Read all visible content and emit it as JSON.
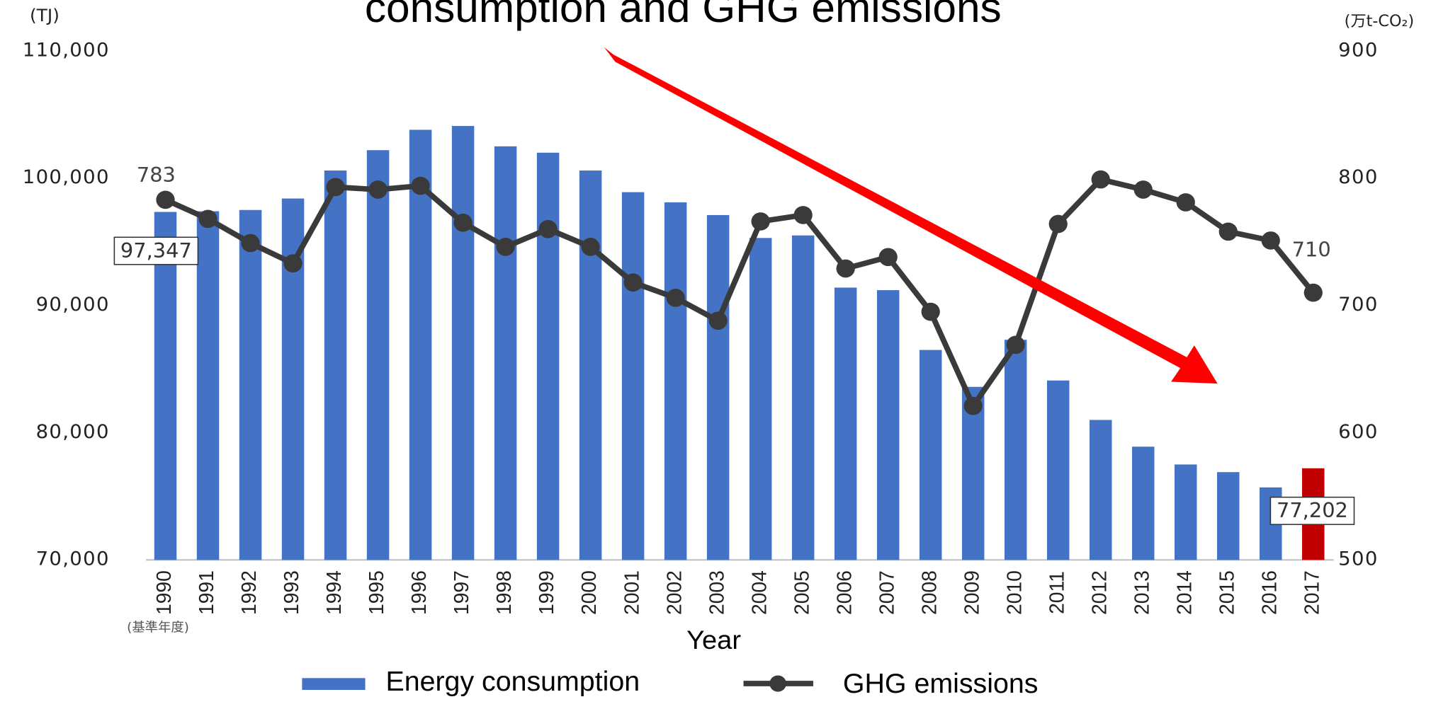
{
  "chart_data": {
    "type": "bar_line",
    "title": "consumption and GHG emissions",
    "y_label": "(TJ)",
    "y2_label": "(万t-CO₂)",
    "x_label": "Year",
    "x_note": "(基準年度)",
    "categories": [
      "1990",
      "1991",
      "1992",
      "1993",
      "1994",
      "1995",
      "1996",
      "1997",
      "1998",
      "1999",
      "2000",
      "2001",
      "2002",
      "2003",
      "2004",
      "2005",
      "2006",
      "2007",
      "2008",
      "2009",
      "2010",
      "2011",
      "2012",
      "2013",
      "2014",
      "2015",
      "2016",
      "2017"
    ],
    "series": [
      {
        "name": "Energy consumption",
        "type": "bar",
        "color": "#4472c4",
        "colors": [
          "#4472c4",
          "#4472c4",
          "#4472c4",
          "#4472c4",
          "#4472c4",
          "#4472c4",
          "#4472c4",
          "#4472c4",
          "#4472c4",
          "#4472c4",
          "#4472c4",
          "#4472c4",
          "#4472c4",
          "#4472c4",
          "#4472c4",
          "#4472c4",
          "#4472c4",
          "#4472c4",
          "#4472c4",
          "#4472c4",
          "#4472c4",
          "#4472c4",
          "#4472c4",
          "#4472c4",
          "#4472c4",
          "#4472c4",
          "#4472c4",
          "#c00000"
        ],
        "values": [
          97347,
          97400,
          97500,
          98400,
          100600,
          102200,
          103800,
          104100,
          102500,
          102000,
          100600,
          98900,
          98100,
          97100,
          95300,
          95500,
          91400,
          91200,
          86500,
          83600,
          87300,
          84100,
          81000,
          78900,
          77500,
          76900,
          75700,
          77202
        ],
        "value_labels": [
          "97,347",
          null,
          null,
          null,
          null,
          null,
          null,
          null,
          null,
          null,
          null,
          null,
          null,
          null,
          null,
          null,
          null,
          null,
          null,
          null,
          null,
          null,
          null,
          null,
          null,
          null,
          null,
          "77,202"
        ]
      },
      {
        "name": "GHG emissions",
        "type": "line",
        "axis": "y2",
        "color": "#3a3a3a",
        "values": [
          783,
          768,
          749,
          733,
          793,
          791,
          794,
          765,
          746,
          760,
          746,
          718,
          706,
          688,
          766,
          771,
          729,
          738,
          695,
          621,
          669,
          764,
          799,
          791,
          781,
          758,
          751,
          710
        ],
        "value_labels": [
          "783",
          null,
          null,
          null,
          null,
          null,
          null,
          null,
          null,
          null,
          null,
          null,
          null,
          null,
          null,
          null,
          null,
          null,
          null,
          null,
          null,
          null,
          null,
          null,
          null,
          null,
          null,
          "710"
        ]
      }
    ],
    "ylim": [
      70000,
      110000
    ],
    "yticks": [
      {
        "value": 70000,
        "label": "70,000"
      },
      {
        "value": 80000,
        "label": "80,000"
      },
      {
        "value": 90000,
        "label": "90,000"
      },
      {
        "value": 100000,
        "label": "100,000"
      },
      {
        "value": 110000,
        "label": "110,000"
      }
    ],
    "y2lim": [
      500,
      900
    ],
    "y2ticks": [
      500,
      600,
      700,
      800,
      900
    ]
  }
}
